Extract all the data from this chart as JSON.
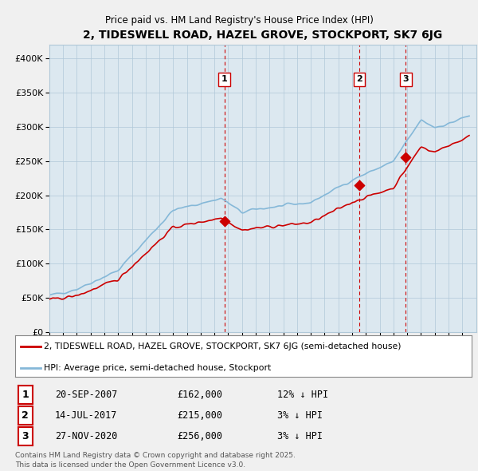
{
  "title": "2, TIDESWELL ROAD, HAZEL GROVE, STOCKPORT, SK7 6JG",
  "subtitle": "Price paid vs. HM Land Registry's House Price Index (HPI)",
  "ylim": [
    0,
    420000
  ],
  "yticks": [
    0,
    50000,
    100000,
    150000,
    200000,
    250000,
    300000,
    350000,
    400000
  ],
  "ytick_labels": [
    "£0",
    "£50K",
    "£100K",
    "£150K",
    "£200K",
    "£250K",
    "£300K",
    "£350K",
    "£400K"
  ],
  "sale_dates": [
    2007.72,
    2017.53,
    2020.9
  ],
  "sale_prices": [
    162000,
    215000,
    256000
  ],
  "sale_labels": [
    "1",
    "2",
    "3"
  ],
  "hpi_color": "#85b8d8",
  "price_color": "#cc0000",
  "legend_price_label": "2, TIDESWELL ROAD, HAZEL GROVE, STOCKPORT, SK7 6JG (semi-detached house)",
  "legend_hpi_label": "HPI: Average price, semi-detached house, Stockport",
  "table_data": [
    {
      "num": "1",
      "date": "20-SEP-2007",
      "price": "£162,000",
      "hpi": "12% ↓ HPI"
    },
    {
      "num": "2",
      "date": "14-JUL-2017",
      "price": "£215,000",
      "hpi": "3% ↓ HPI"
    },
    {
      "num": "3",
      "date": "27-NOV-2020",
      "price": "£256,000",
      "hpi": "3% ↓ HPI"
    }
  ],
  "footnote": "Contains HM Land Registry data © Crown copyright and database right 2025.\nThis data is licensed under the Open Government Licence v3.0.",
  "background_color": "#f0f0f0",
  "plot_bg_color": "#dce8f0",
  "grid_color": "#b0c8d8",
  "vline_color": "#cc0000",
  "xstart": 1995,
  "xend": 2026
}
